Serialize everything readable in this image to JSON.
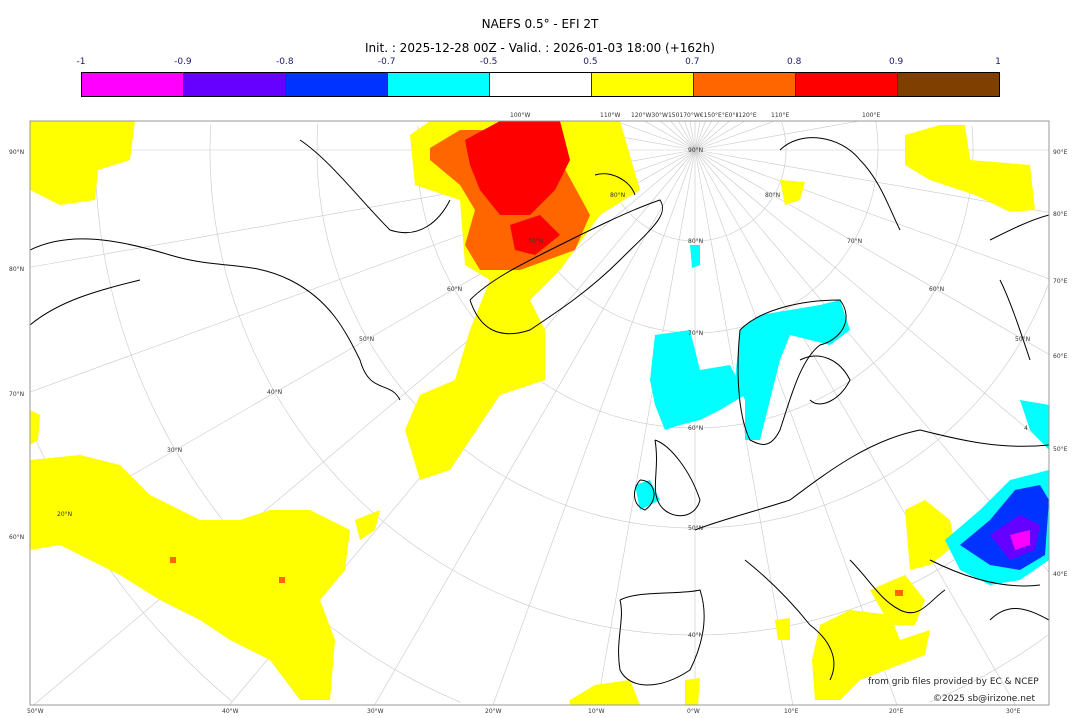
{
  "header": {
    "title": "NAEFS 0.5° - EFI 2T",
    "subtitle": "Init. : 2025-12-28 00Z - Valid. : 2026-01-03 18:00 (+162h)"
  },
  "colorbar": {
    "labels": [
      "-1",
      "-0.9",
      "-0.8",
      "-0.7",
      "-0.5",
      "0.5",
      "0.7",
      "0.8",
      "0.9",
      "1"
    ],
    "colors": [
      "#ff00ff",
      "#6600ff",
      "#0033ff",
      "#00ffff",
      "#ffffff",
      "#ffff00",
      "#ff6600",
      "#ff0000",
      "#7f3f00"
    ]
  },
  "axes": {
    "left": [
      "90°N",
      "80°N",
      "70°N",
      "60°N"
    ],
    "right": [
      "90°E",
      "80°E",
      "70°E",
      "60°E",
      "50°E",
      "40°E"
    ],
    "bottom": [
      "50°W",
      "40°W",
      "30°W",
      "20°W",
      "10°W",
      "0°W",
      "10°E",
      "20°E",
      "30°E"
    ],
    "top": [
      "100°W",
      "110°W",
      "120°W30°W150170°W€150°E°E0°Ⅱ120°E",
      "110°E",
      "100°E"
    ],
    "inner_lat": [
      "90°N",
      "80°N",
      "70°N",
      "60°N",
      "50°N",
      "40°N"
    ],
    "left_lat": [
      "80°N",
      "70°N",
      "60°N",
      "50°N",
      "40°N",
      "30°N",
      "20°N"
    ],
    "right_lat": [
      "80°N",
      "70°N",
      "60°N",
      "50°N",
      "4"
    ]
  },
  "credits": {
    "source": "from grib files provided by EC & NCEP",
    "copyright": "©2025 sb@irizone.net"
  }
}
